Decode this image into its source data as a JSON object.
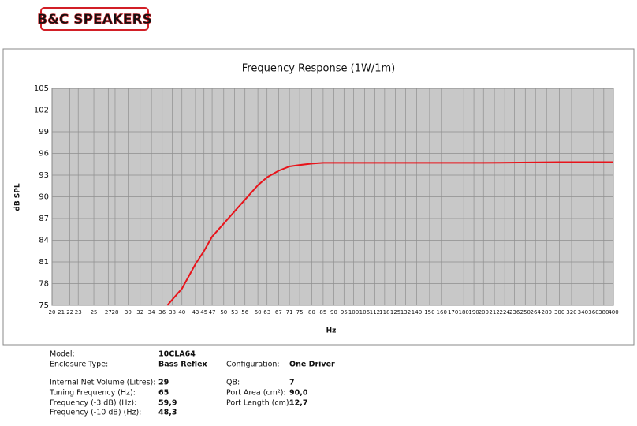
{
  "header": {
    "logo": "B&C SPEAKERS"
  },
  "chart_data": {
    "type": "line",
    "title": "Frequency Response (1W/1m)",
    "xlabel": "Hz",
    "ylabel": "dB SPL",
    "xscale": "log",
    "grid": true,
    "xlim": [
      20,
      400
    ],
    "ylim": [
      75,
      105
    ],
    "xticks": [
      20,
      21,
      22,
      23,
      25,
      27,
      28,
      30,
      32,
      34,
      36,
      38,
      40,
      43,
      45,
      47,
      50,
      53,
      56,
      60,
      63,
      67,
      71,
      75,
      80,
      85,
      90,
      95,
      100,
      106,
      112,
      118,
      125,
      132,
      140,
      150,
      160,
      170,
      180,
      190,
      200,
      212,
      224,
      236,
      250,
      264,
      280,
      300,
      320,
      340,
      360,
      380,
      400
    ],
    "yticks": [
      75,
      78,
      81,
      84,
      87,
      90,
      93,
      96,
      99,
      102,
      105
    ],
    "x": [
      37,
      40,
      43,
      45,
      47,
      50,
      53,
      56,
      60,
      63,
      67,
      71,
      75,
      80,
      85,
      90,
      100,
      150,
      200,
      300,
      400
    ],
    "series": [
      {
        "color": "#e8141b",
        "values": [
          75,
          77.3,
          80.7,
          82.5,
          84.5,
          86.3,
          88,
          89.6,
          91.6,
          92.7,
          93.6,
          94.2,
          94.4,
          94.6,
          94.7,
          94.7,
          94.7,
          94.7,
          94.7,
          94.8,
          94.8
        ]
      }
    ]
  },
  "specs": {
    "rows": [
      [
        [
          "Model:",
          "10CLA64"
        ]
      ],
      [
        [
          "Enclosure Type:",
          "Bass Reflex"
        ],
        [
          "Configuration:",
          "One Driver"
        ]
      ],
      [
        [
          "Internal Net Volume (Litres):",
          "29"
        ],
        [
          "QB:",
          "7"
        ]
      ],
      [
        [
          "Tuning Frequency (Hz):",
          "65"
        ],
        [
          "Port Area (cm²):",
          "90,0"
        ]
      ],
      [
        [
          "Frequency (-3 dB) (Hz):",
          "59,9"
        ],
        [
          "Port Length (cm):",
          "12,7"
        ]
      ],
      [
        [
          "Frequency (-10 dB) (Hz):",
          "48,3"
        ]
      ]
    ]
  }
}
